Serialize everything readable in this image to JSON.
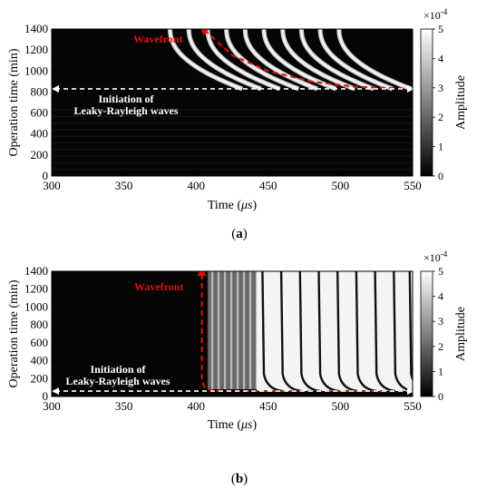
{
  "chart_data": [
    {
      "type": "heatmap",
      "panel_label": "(a)",
      "xlabel_text": "Time (",
      "xlabel_unit": "μs",
      "xlabel_close": ")",
      "ylabel": "Operation time (min)",
      "xlim": [
        300,
        550
      ],
      "ylim": [
        0,
        1400
      ],
      "xticks": [
        "300",
        "350",
        "400",
        "450",
        "500",
        "550"
      ],
      "yticks": [
        "0",
        "200",
        "400",
        "600",
        "800",
        "1000",
        "1200",
        "1400"
      ],
      "colorbar": {
        "label": "Amplitude",
        "range": [
          0,
          5
        ],
        "ticks": [
          "0",
          "1",
          "2",
          "3",
          "4",
          "5"
        ],
        "exponent_prefix": "×10",
        "exponent_power": "-4"
      },
      "annotations": {
        "wavefront_label": "Wavefront",
        "initiation_line1": "Initiation of",
        "initiation_line2": "Leaky-Rayleigh waves",
        "initiation_time_min": 830,
        "wavefront_curve": [
          [
            405,
            1400
          ],
          [
            425,
            1150
          ],
          [
            450,
            1000
          ],
          [
            480,
            900
          ],
          [
            510,
            850
          ],
          [
            550,
            830
          ]
        ]
      },
      "fringe_arrival_us_at_830": [
        432,
        445,
        458,
        471,
        484,
        497,
        510,
        523,
        536,
        549
      ],
      "fringe_shift_us_at_1400": 50
    },
    {
      "type": "heatmap",
      "panel_label": "(b)",
      "xlabel_text": "Time (",
      "xlabel_unit": "μs",
      "xlabel_close": ")",
      "ylabel": "Operation time (min)",
      "xlim": [
        300,
        550
      ],
      "ylim": [
        0,
        1400
      ],
      "xticks": [
        "300",
        "350",
        "400",
        "450",
        "500",
        "550"
      ],
      "yticks": [
        "0",
        "200",
        "400",
        "600",
        "800",
        "1000",
        "1200",
        "1400"
      ],
      "colorbar": {
        "label": "Amplitude",
        "range": [
          0,
          5
        ],
        "ticks": [
          "0",
          "1",
          "2",
          "3",
          "4",
          "5"
        ],
        "exponent_prefix": "×10",
        "exponent_power": "-4"
      },
      "annotations": {
        "wavefront_label": "Wavefront",
        "initiation_line1": "Initiation of",
        "initiation_line2": "Leaky-Rayleigh waves",
        "initiation_time_min": 60,
        "wavefront_curve": [
          [
            404,
            1400
          ],
          [
            404,
            200
          ],
          [
            406,
            90
          ],
          [
            415,
            62
          ],
          [
            550,
            60
          ]
        ]
      },
      "fringe_lines_us": [
        446,
        459,
        472,
        485,
        498,
        511,
        524,
        537,
        548
      ]
    }
  ]
}
